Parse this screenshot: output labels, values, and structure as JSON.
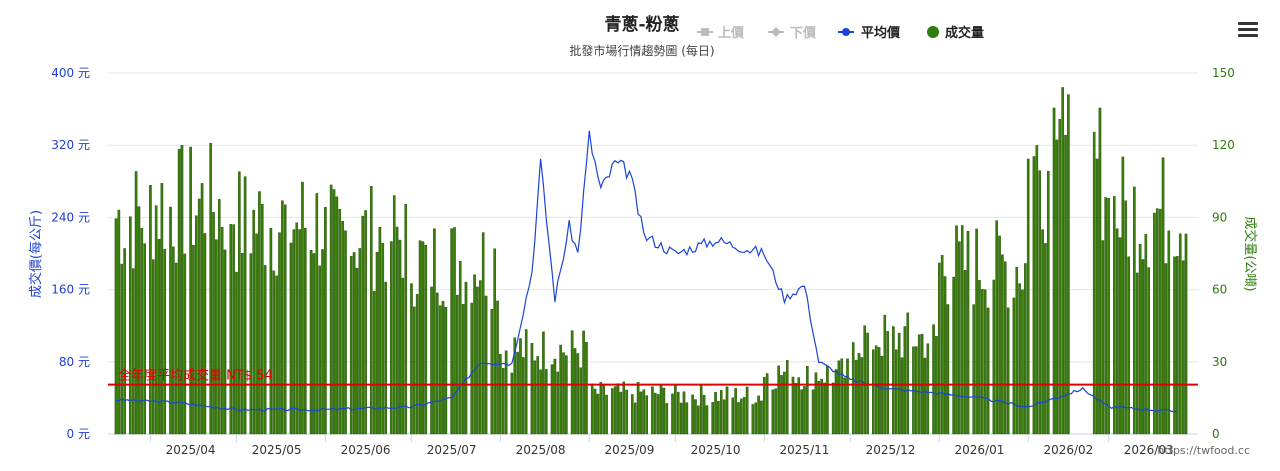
{
  "chart_data": {
    "type": "bar+line",
    "title": "青蔥-粉蔥",
    "subtitle": "批發市場行情趨勢圖 (每日)",
    "legend": [
      {
        "name": "上價",
        "color": "#bbbbbb",
        "marker": "square",
        "active": false
      },
      {
        "name": "下價",
        "color": "#bbbbbb",
        "marker": "diamond",
        "active": false
      },
      {
        "name": "平均價",
        "color": "#1a45d6",
        "marker": "circle",
        "active": true
      },
      {
        "name": "成交量",
        "color": "#2e7d0f",
        "marker": "circle",
        "active": true
      }
    ],
    "y_left": {
      "title": "成交價(每公斤)",
      "min": 0,
      "max": 400,
      "ticks": [
        "0 元",
        "80 元",
        "160 元",
        "240 元",
        "320 元",
        "400 元"
      ],
      "tick_values": [
        0,
        80,
        160,
        240,
        320,
        400
      ]
    },
    "y_right": {
      "title": "成交量(公噸)",
      "min": 0,
      "max": 150,
      "ticks": [
        "0",
        "30",
        "60",
        "90",
        "120",
        "150"
      ],
      "tick_values": [
        0,
        30,
        60,
        90,
        120,
        150
      ]
    },
    "x_labels": [
      "2025/04",
      "2025/05",
      "2025/06",
      "2025/07",
      "2025/08",
      "2025/09",
      "2025/10",
      "2025/11",
      "2025/12",
      "2026/01",
      "2026/02",
      "2026/03"
    ],
    "plot_line": {
      "label": "全年度平均成交量 NT$ 54",
      "value_right": 20.5,
      "color": "#e00000"
    },
    "monthly_volume_profile": [
      {
        "month": "2025/03 (late)",
        "avg": 90
      },
      {
        "month": "2025/04",
        "avg": 95
      },
      {
        "month": "2025/05",
        "avg": 88
      },
      {
        "month": "2025/06",
        "avg": 82
      },
      {
        "month": "2025/07",
        "avg": 72
      },
      {
        "month": "2025/08",
        "avg": 35
      },
      {
        "month": "2025/09",
        "avg": 17
      },
      {
        "month": "2025/10",
        "avg": 16
      },
      {
        "month": "2025/11",
        "avg": 25
      },
      {
        "month": "2025/12",
        "avg": 40
      },
      {
        "month": "2026/01",
        "avg": 70
      },
      {
        "month": "2026/02",
        "avg": 110
      },
      {
        "month": "2026/03",
        "avg": 92
      }
    ],
    "avg_price_points": [
      [
        "2025-03-20",
        38
      ],
      [
        "2025-04-10",
        35
      ],
      [
        "2025-05-01",
        27
      ],
      [
        "2025-06-01",
        27
      ],
      [
        "2025-07-01",
        30
      ],
      [
        "2025-07-15",
        40
      ],
      [
        "2025-07-25",
        80
      ],
      [
        "2025-08-05",
        78
      ],
      [
        "2025-08-12",
        180
      ],
      [
        "2025-08-15",
        300
      ],
      [
        "2025-08-20",
        150
      ],
      [
        "2025-08-25",
        230
      ],
      [
        "2025-08-28",
        200
      ],
      [
        "2025-09-01",
        330
      ],
      [
        "2025-09-05",
        270
      ],
      [
        "2025-09-10",
        300
      ],
      [
        "2025-09-15",
        290
      ],
      [
        "2025-09-20",
        220
      ],
      [
        "2025-10-01",
        200
      ],
      [
        "2025-10-15",
        215
      ],
      [
        "2025-11-01",
        200
      ],
      [
        "2025-11-08",
        150
      ],
      [
        "2025-11-15",
        165
      ],
      [
        "2025-11-20",
        80
      ],
      [
        "2025-12-01",
        60
      ],
      [
        "2025-12-15",
        50
      ],
      [
        "2026-01-01",
        45
      ],
      [
        "2026-01-15",
        40
      ],
      [
        "2026-02-01",
        30
      ],
      [
        "2026-02-20",
        50
      ],
      [
        "2026-03-01",
        30
      ],
      [
        "2026-03-25",
        25
      ]
    ]
  },
  "credits": "https://twfood.cc",
  "menu_icon": "hamburger-icon"
}
